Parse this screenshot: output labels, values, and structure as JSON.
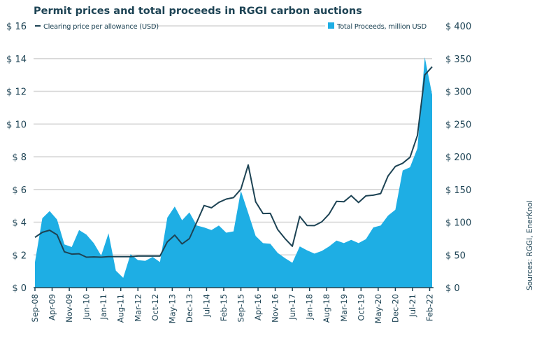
{
  "chart_data": {
    "type": "area+line",
    "title": "Permit prices and total proceeds in RGGI carbon auctions",
    "source": "Sources: RGGI, EnerKnol",
    "x_tick_labels": [
      "Sep-08",
      "Apr-09",
      "Nov-09",
      "Jun-10",
      "Jan-11",
      "Aug-11",
      "Mar-12",
      "Oct-12",
      "May-13",
      "Dec-13",
      "Jul-14",
      "Feb-15",
      "Sep-15",
      "Apr-16",
      "Nov-16",
      "Jun-17",
      "Jan-18",
      "Aug-18",
      "Mar-19",
      "Oct-19",
      "May-20",
      "Dec-20",
      "Jul-21",
      "Feb-22"
    ],
    "y_left": {
      "ticks": [
        "$ 0",
        "$ 2",
        "$ 4",
        "$ 6",
        "$ 8",
        "$ 10",
        "$ 12",
        "$ 14",
        "$ 16"
      ],
      "range": [
        0,
        16
      ]
    },
    "y_right": {
      "ticks": [
        "$ 0",
        "$ 50",
        "$ 100",
        "$ 150",
        "$ 200",
        "$ 250",
        "$ 300",
        "$ 350",
        "$ 400"
      ],
      "range": [
        0,
        400
      ]
    },
    "grid": true,
    "series": [
      {
        "name": "Total Proceeds, million USD",
        "type": "area",
        "axis": "right",
        "color": "#1eaee4",
        "values": [
          39,
          106,
          117,
          104,
          66,
          62,
          88,
          81,
          68,
          49,
          83,
          26,
          15,
          51,
          42,
          41,
          47,
          39,
          107,
          124,
          103,
          115,
          95,
          92,
          88,
          95,
          84,
          86,
          148,
          114,
          79,
          68,
          67,
          53,
          45,
          38,
          63,
          57,
          52,
          56,
          63,
          72,
          68,
          73,
          68,
          74,
          92,
          95,
          110,
          119,
          179,
          184,
          213,
          352,
          295
        ]
      },
      {
        "name": "Clearing price per allowance (USD)",
        "type": "line",
        "axis": "left",
        "color": "#1d4354",
        "values": [
          3.07,
          3.38,
          3.51,
          3.23,
          2.19,
          2.05,
          2.07,
          1.86,
          1.88,
          1.86,
          1.89,
          1.89,
          1.89,
          1.89,
          1.93,
          1.93,
          1.93,
          1.93,
          2.8,
          3.21,
          2.67,
          3.0,
          4.0,
          5.02,
          4.88,
          5.21,
          5.41,
          5.5,
          6.02,
          7.5,
          5.25,
          4.53,
          4.54,
          3.55,
          3.0,
          2.53,
          4.35,
          3.8,
          3.79,
          4.02,
          4.5,
          5.27,
          5.25,
          5.62,
          5.2,
          5.61,
          5.65,
          5.75,
          6.82,
          7.41,
          7.6,
          7.97,
          9.3,
          13.0,
          13.5
        ]
      }
    ],
    "legend": {
      "line_position": "top-left",
      "area_position": "top-right"
    }
  }
}
